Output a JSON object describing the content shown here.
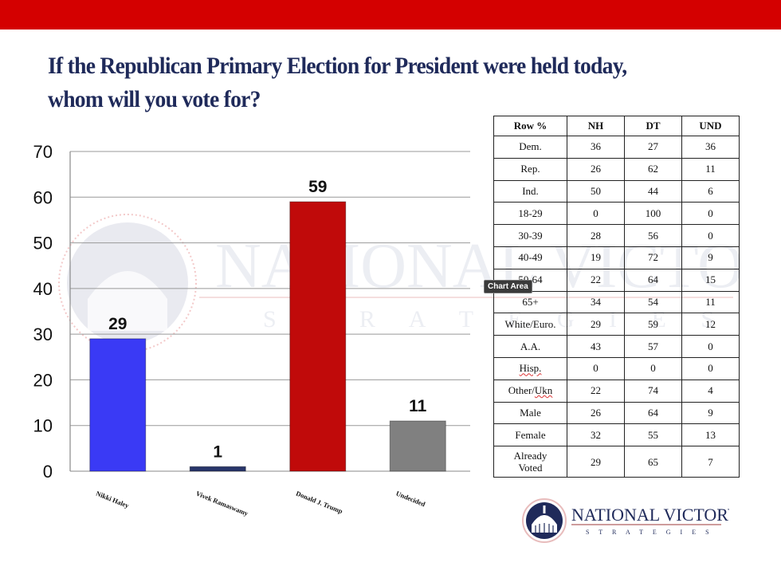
{
  "title": "If the Republican Primary Election for President were held today, whom will you vote for?",
  "brand": {
    "name_line1": "NATIONAL VICTORY",
    "name_line2": "S T R A T E G I E S",
    "watermark_line1": "NATIONAL VICTORY",
    "watermark_line2": "S T R A T E G I E S",
    "colors": {
      "top_bar": "#d40000",
      "title": "#1f2a5a",
      "logo_navy": "#1f2a5a"
    }
  },
  "tooltip": "Chart Area",
  "chart_data": {
    "type": "bar",
    "title": "",
    "xlabel": "",
    "ylabel": "",
    "ylim": [
      0,
      70
    ],
    "yticks": [
      0,
      10,
      20,
      30,
      40,
      50,
      60,
      70
    ],
    "grid": true,
    "categories": [
      "Nikki Haley",
      "Vivek Ramaswamy",
      "Donald J. Trump",
      "Undecided"
    ],
    "values": [
      29,
      1,
      59,
      11
    ],
    "data_labels": [
      "29",
      "1",
      "59",
      "11"
    ],
    "colors": [
      "#3a3af5",
      "#28356a",
      "#c00a0a",
      "#808080"
    ]
  },
  "table": {
    "headers": [
      "Row %",
      "NH",
      "DT",
      "UND"
    ],
    "rows": [
      {
        "label": "Dem.",
        "values": [
          "36",
          "27",
          "36"
        ]
      },
      {
        "label": "Rep.",
        "values": [
          "26",
          "62",
          "11"
        ]
      },
      {
        "label": "Ind.",
        "values": [
          "50",
          "44",
          "6"
        ]
      },
      {
        "label": "18-29",
        "values": [
          "0",
          "100",
          "0"
        ]
      },
      {
        "label": "30-39",
        "values": [
          "28",
          "56",
          "0"
        ]
      },
      {
        "label": "40-49",
        "values": [
          "19",
          "72",
          "9"
        ]
      },
      {
        "label": "50-64",
        "values": [
          "22",
          "64",
          "15"
        ]
      },
      {
        "label": "65+",
        "values": [
          "34",
          "54",
          "11"
        ]
      },
      {
        "label": "White/Euro.",
        "values": [
          "29",
          "59",
          "12"
        ]
      },
      {
        "label": "A.A.",
        "values": [
          "43",
          "57",
          "0"
        ]
      },
      {
        "label": "Hisp.",
        "values": [
          "0",
          "0",
          "0"
        ]
      },
      {
        "label": "Other/Ukn",
        "values": [
          "22",
          "74",
          "4"
        ]
      },
      {
        "label": "Male",
        "values": [
          "26",
          "64",
          "9"
        ]
      },
      {
        "label": "Female",
        "values": [
          "32",
          "55",
          "13"
        ]
      },
      {
        "label": "Already Voted",
        "values": [
          "29",
          "65",
          "7"
        ]
      }
    ]
  }
}
